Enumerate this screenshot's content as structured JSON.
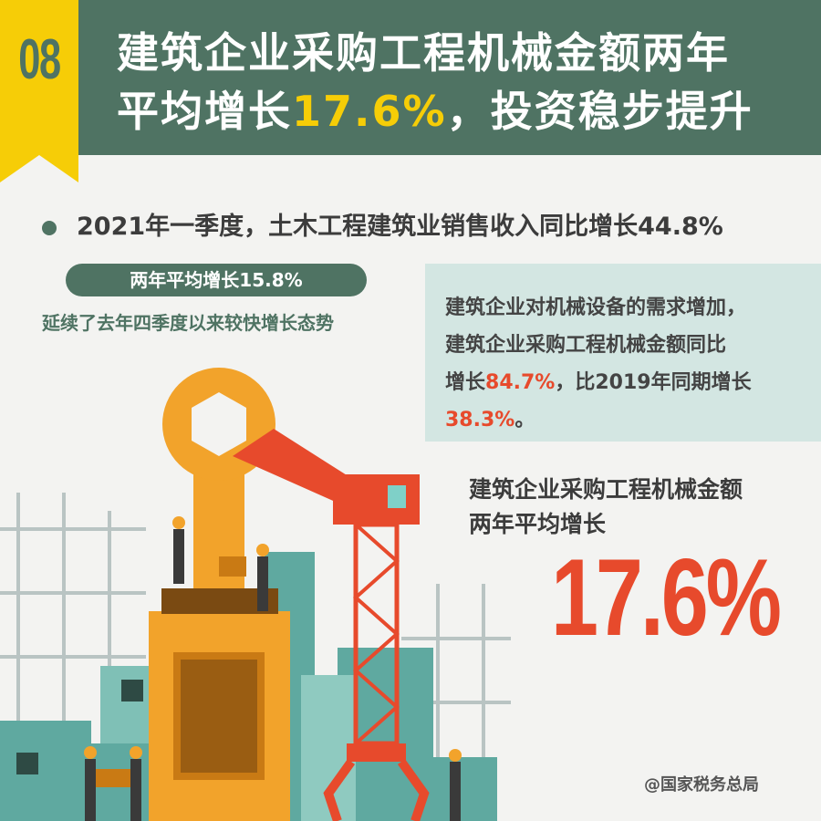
{
  "badge": {
    "number": "08"
  },
  "header": {
    "title_line1": "建筑企业采购工程机械金额两年",
    "title_line2_prefix": "平均增长",
    "title_highlight": "17.6%",
    "title_line2_suffix": "，投资稳步提升"
  },
  "bullet": {
    "text": "2021年一季度，土木工程建筑业销售收入同比增长44.8%"
  },
  "pill": {
    "text": "两年平均增长15.8%"
  },
  "subtext": {
    "text": "延续了去年四季度以来较快增长态势"
  },
  "info_box": {
    "line1": "建筑企业对机械设备的需求增加，",
    "line2": "建筑企业采购工程机械金额同比",
    "line3_prefix": "增长",
    "line3_value": "84.7%",
    "line3_suffix": "，比2019年同期增长",
    "line4_value": "38.3%",
    "line4_suffix": "。"
  },
  "stat": {
    "label_line1": "建筑企业采购工程机械金额",
    "label_line2": "两年平均增长",
    "value": "17.6%"
  },
  "credit": {
    "text": "@国家税务总局"
  },
  "colors": {
    "header": "#4f7363",
    "badge": "#f6cd07",
    "accent_red": "#e74a2c",
    "teal": "#5fa9a0",
    "orange": "#f2a32b"
  }
}
